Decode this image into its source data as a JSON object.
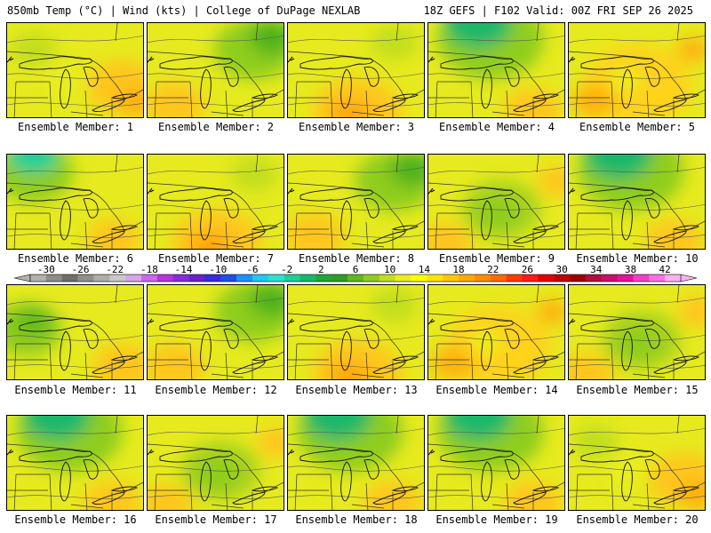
{
  "header": {
    "left": "850mb Temp (°C) | Wind (kts) | College of DuPage NEXLAB",
    "right": "18Z GEFS | F102 Valid: 00Z FRI SEP 26 2025"
  },
  "caption_prefix": "Ensemble Member:",
  "members": [
    {
      "number": "1",
      "field": "warm-east"
    },
    {
      "number": "2",
      "field": "cool-northeast"
    },
    {
      "number": "3",
      "field": "warm-south"
    },
    {
      "number": "4",
      "field": "cool-north"
    },
    {
      "number": "5",
      "field": "warm"
    },
    {
      "number": "6",
      "field": "cool-northwest"
    },
    {
      "number": "7",
      "field": "warm-south"
    },
    {
      "number": "8",
      "field": "cool-northeast"
    },
    {
      "number": "9",
      "field": "cool-center"
    },
    {
      "number": "10",
      "field": "cool-north"
    },
    {
      "number": "11",
      "field": "cool-west"
    },
    {
      "number": "12",
      "field": "cool-northeast"
    },
    {
      "number": "13",
      "field": "warm-south"
    },
    {
      "number": "14",
      "field": "warm"
    },
    {
      "number": "15",
      "field": "cool-center"
    },
    {
      "number": "16",
      "field": "cool-north"
    },
    {
      "number": "17",
      "field": "cool-center"
    },
    {
      "number": "18",
      "field": "cool-north"
    },
    {
      "number": "19",
      "field": "cool-north"
    },
    {
      "number": "20",
      "field": "warm-east"
    }
  ],
  "colorbar": {
    "labels": [
      "-30",
      "-26",
      "-22",
      "-18",
      "-14",
      "-10",
      "-6",
      "-2",
      "2",
      "6",
      "10",
      "14",
      "18",
      "22",
      "26",
      "30",
      "34",
      "38",
      "42"
    ],
    "colors": [
      "#b0b0b0",
      "#8c8c8c",
      "#6e6e6e",
      "#8f8f8f",
      "#adadad",
      "#c8c8c8",
      "#d6a6e6",
      "#cc66ee",
      "#b833e0",
      "#8a2be2",
      "#6a22cc",
      "#3a2ae0",
      "#1f4fe8",
      "#1e90ff",
      "#22c8f0",
      "#2ee0d0",
      "#1fcf9a",
      "#17b86b",
      "#1ea83a",
      "#2f9e24",
      "#5fb81e",
      "#8fcd1e",
      "#c2de1e",
      "#e9ef1e",
      "#ffff00",
      "#ffe600",
      "#ffc800",
      "#ffaa00",
      "#ff8c00",
      "#ff6a00",
      "#ff3a00",
      "#ff1a1a",
      "#e60000",
      "#c00000",
      "#a00000",
      "#b0103c",
      "#c8106a",
      "#e0159a",
      "#f040c8",
      "#ff70e6",
      "#ffb0f2"
    ]
  }
}
